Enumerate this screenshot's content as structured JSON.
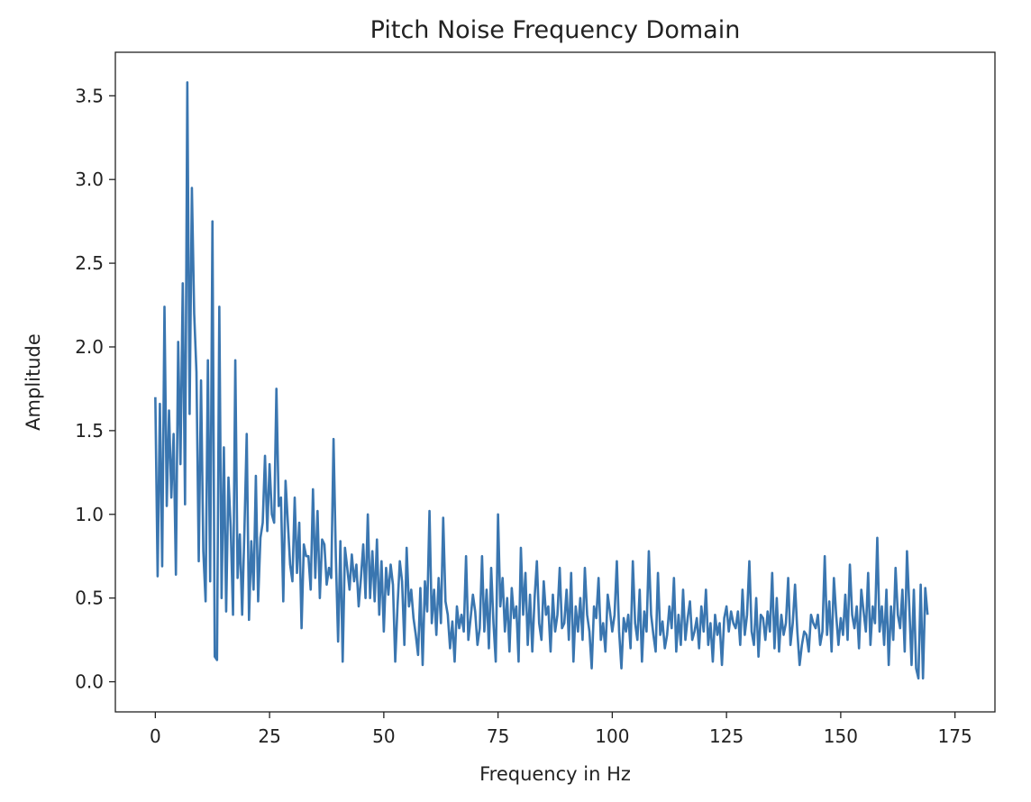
{
  "chart_data": {
    "type": "line",
    "title": "Pitch Noise Frequency Domain",
    "xlabel": "Frequency in Hz",
    "ylabel": "Amplitude",
    "xlim": [
      -8.75,
      183.75
    ],
    "ylim": [
      -0.18,
      3.76
    ],
    "xticks": [
      0,
      25,
      50,
      75,
      100,
      125,
      150,
      175
    ],
    "yticks": [
      0.0,
      0.5,
      1.0,
      1.5,
      2.0,
      2.5,
      3.0,
      3.5
    ],
    "xtick_labels": [
      "0",
      "25",
      "50",
      "75",
      "100",
      "125",
      "150",
      "175"
    ],
    "ytick_labels": [
      "0.0",
      "0.5",
      "1.0",
      "1.5",
      "2.0",
      "2.5",
      "3.0",
      "3.5"
    ],
    "grid": false,
    "series_color": "#3a76b0",
    "series": [
      {
        "x_start": 0,
        "x_step": 0.5,
        "values": [
          1.7,
          0.63,
          1.66,
          0.69,
          2.24,
          1.05,
          1.62,
          1.1,
          1.48,
          0.64,
          2.03,
          1.3,
          2.38,
          1.06,
          3.58,
          1.6,
          2.95,
          2.2,
          1.85,
          0.72,
          1.8,
          0.78,
          0.48,
          1.92,
          0.6,
          2.75,
          0.15,
          0.13,
          2.24,
          0.5,
          1.4,
          0.42,
          1.22,
          0.92,
          0.4,
          1.92,
          0.62,
          0.88,
          0.4,
          0.91,
          1.48,
          0.37,
          0.84,
          0.55,
          1.23,
          0.48,
          0.86,
          0.95,
          1.35,
          0.9,
          1.3,
          1.0,
          0.95,
          1.75,
          1.05,
          1.1,
          0.48,
          1.2,
          0.95,
          0.7,
          0.6,
          1.1,
          0.65,
          0.95,
          0.32,
          0.82,
          0.75,
          0.75,
          0.55,
          1.15,
          0.62,
          1.02,
          0.5,
          0.85,
          0.82,
          0.58,
          0.68,
          0.62,
          1.45,
          0.75,
          0.24,
          0.84,
          0.12,
          0.8,
          0.68,
          0.55,
          0.76,
          0.6,
          0.7,
          0.45,
          0.62,
          0.82,
          0.5,
          1.0,
          0.5,
          0.78,
          0.48,
          0.85,
          0.4,
          0.72,
          0.3,
          0.68,
          0.52,
          0.7,
          0.58,
          0.12,
          0.45,
          0.72,
          0.6,
          0.22,
          0.8,
          0.45,
          0.55,
          0.38,
          0.28,
          0.16,
          0.56,
          0.1,
          0.6,
          0.42,
          1.02,
          0.35,
          0.55,
          0.28,
          0.62,
          0.35,
          0.98,
          0.48,
          0.4,
          0.2,
          0.36,
          0.12,
          0.45,
          0.32,
          0.4,
          0.3,
          0.75,
          0.25,
          0.38,
          0.52,
          0.42,
          0.22,
          0.32,
          0.75,
          0.3,
          0.55,
          0.2,
          0.68,
          0.35,
          0.12,
          1.0,
          0.45,
          0.62,
          0.3,
          0.5,
          0.18,
          0.56,
          0.38,
          0.45,
          0.12,
          0.8,
          0.4,
          0.65,
          0.22,
          0.52,
          0.18,
          0.5,
          0.72,
          0.35,
          0.25,
          0.6,
          0.4,
          0.45,
          0.18,
          0.52,
          0.3,
          0.4,
          0.68,
          0.32,
          0.35,
          0.55,
          0.25,
          0.65,
          0.12,
          0.45,
          0.3,
          0.5,
          0.25,
          0.68,
          0.4,
          0.3,
          0.08,
          0.45,
          0.38,
          0.62,
          0.25,
          0.35,
          0.18,
          0.52,
          0.42,
          0.3,
          0.4,
          0.72,
          0.3,
          0.08,
          0.38,
          0.3,
          0.4,
          0.2,
          0.72,
          0.35,
          0.25,
          0.55,
          0.12,
          0.42,
          0.3,
          0.78,
          0.4,
          0.28,
          0.18,
          0.65,
          0.28,
          0.36,
          0.2,
          0.28,
          0.45,
          0.32,
          0.62,
          0.18,
          0.4,
          0.22,
          0.55,
          0.25,
          0.38,
          0.48,
          0.25,
          0.3,
          0.38,
          0.2,
          0.45,
          0.3,
          0.55,
          0.22,
          0.35,
          0.12,
          0.4,
          0.28,
          0.35,
          0.1,
          0.38,
          0.45,
          0.3,
          0.42,
          0.35,
          0.32,
          0.42,
          0.22,
          0.55,
          0.28,
          0.4,
          0.72,
          0.3,
          0.22,
          0.5,
          0.15,
          0.4,
          0.38,
          0.25,
          0.42,
          0.3,
          0.65,
          0.2,
          0.5,
          0.18,
          0.4,
          0.28,
          0.35,
          0.62,
          0.22,
          0.35,
          0.58,
          0.3,
          0.1,
          0.22,
          0.3,
          0.28,
          0.18,
          0.4,
          0.35,
          0.32,
          0.4,
          0.22,
          0.3,
          0.75,
          0.28,
          0.48,
          0.18,
          0.62,
          0.4,
          0.22,
          0.38,
          0.28,
          0.52,
          0.25,
          0.7,
          0.4,
          0.32,
          0.45,
          0.2,
          0.55,
          0.42,
          0.3,
          0.65,
          0.22,
          0.45,
          0.35,
          0.86,
          0.3,
          0.45,
          0.22,
          0.55,
          0.1,
          0.45,
          0.25,
          0.68,
          0.4,
          0.32,
          0.55,
          0.18,
          0.78,
          0.45,
          0.1,
          0.55,
          0.08,
          0.02,
          0.58,
          0.02,
          0.56,
          0.4
        ]
      }
    ]
  }
}
